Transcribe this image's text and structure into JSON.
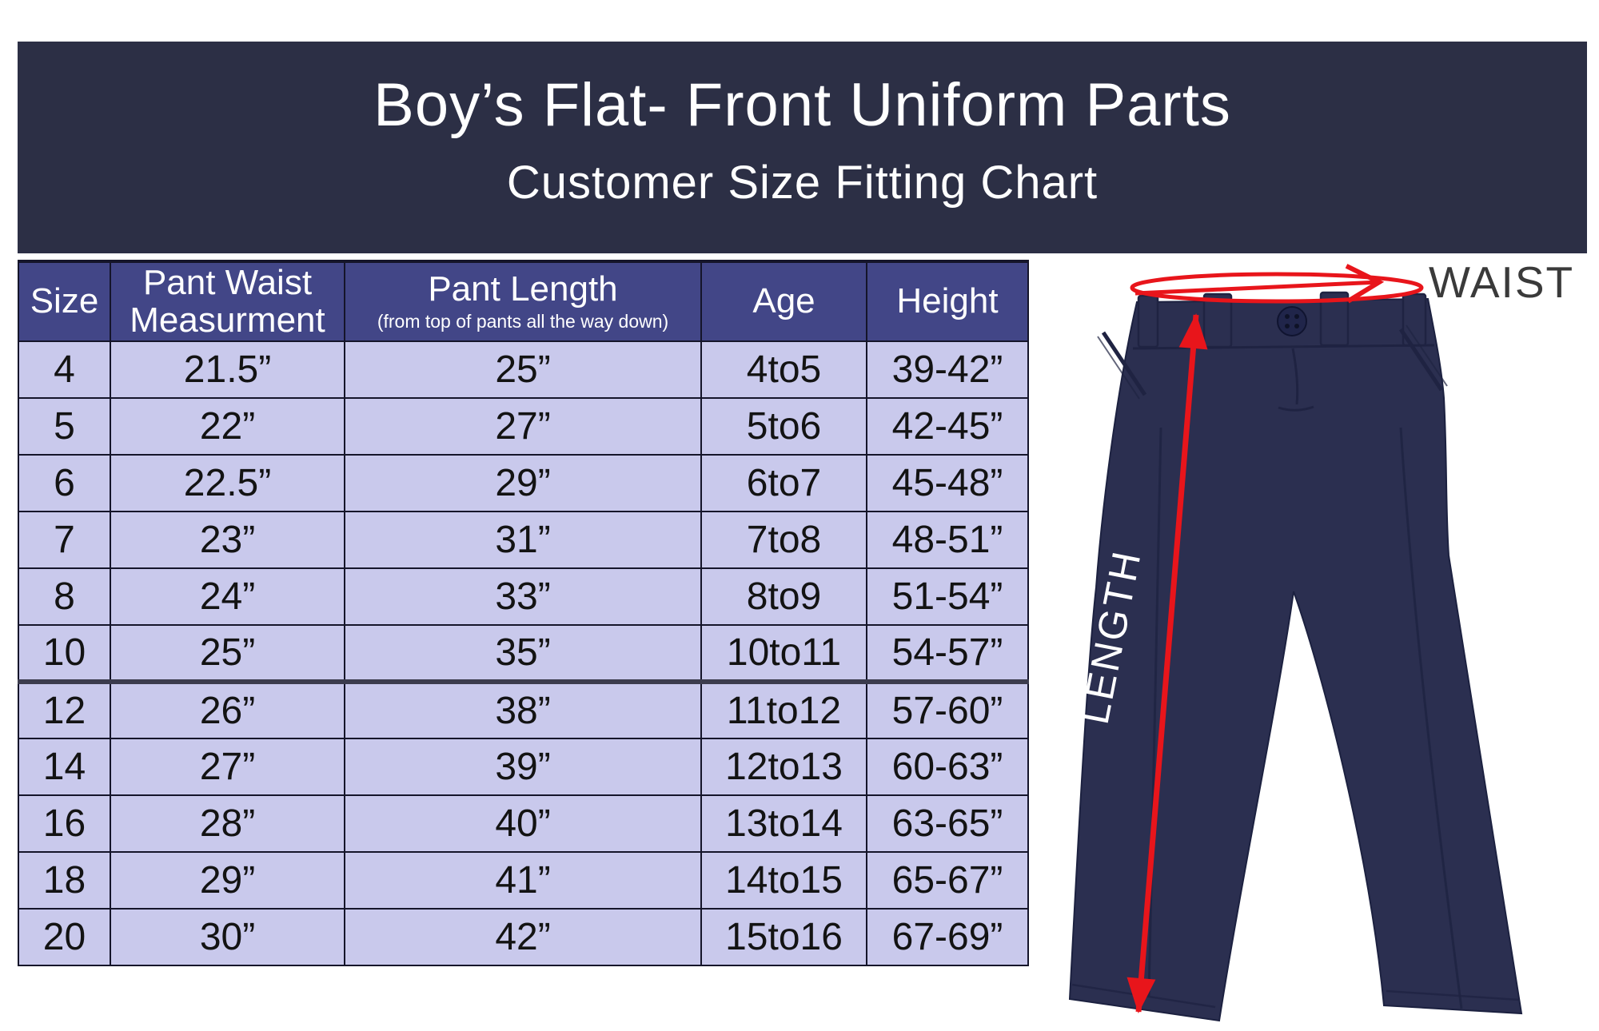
{
  "banner": {
    "title": "Boy’s Flat- Front Uniform Parts",
    "subtitle": "Customer Size Fitting Chart"
  },
  "table": {
    "columns": [
      {
        "id": "size",
        "line1": "Size"
      },
      {
        "id": "pant-waist",
        "line1": "Pant Waist",
        "line2": "Measurment"
      },
      {
        "id": "pant-length",
        "line1": "Pant Length",
        "sub": "(from top of pants all the way down)"
      },
      {
        "id": "age",
        "line1": "Age"
      },
      {
        "id": "height",
        "line1": "Height"
      }
    ],
    "rows": [
      [
        "4",
        "21.5”",
        "25”",
        "4to5",
        "39-42”"
      ],
      [
        "5",
        "22”",
        "27”",
        "5to6",
        "42-45”"
      ],
      [
        "6",
        "22.5”",
        "29”",
        "6to7",
        "45-48”"
      ],
      [
        "7",
        "23”",
        "31”",
        "7to8",
        "48-51”"
      ],
      [
        "8",
        "24”",
        "33”",
        "8to9",
        "51-54”"
      ],
      [
        "10",
        "25”",
        "35”",
        "10to11",
        "54-57”"
      ],
      [
        "12",
        "26”",
        "38”",
        "11to12",
        "57-60”"
      ],
      [
        "14",
        "27”",
        "39”",
        "12to13",
        "60-63”"
      ],
      [
        "16",
        "28”",
        "40”",
        "13to14",
        "63-65”"
      ],
      [
        "18",
        "29”",
        "41”",
        "14to15",
        "65-67”"
      ],
      [
        "20",
        "30”",
        "42”",
        "15to16",
        "67-69”"
      ]
    ],
    "thick_border_before_row": 6
  },
  "diagram": {
    "waist_label": "WAIST",
    "length_label": "LENGTH"
  },
  "colors": {
    "page_bg": "#ffffff",
    "banner_bg": "#2c2f45",
    "banner_text": "#ffffff",
    "header_bg": "#424687",
    "header_text": "#ffffff",
    "row_bg": "#c9c9ec",
    "cell_text": "#131313",
    "grid_line": "#15152a",
    "thick_line": "#3c3c4e",
    "annotation_red": "#e8151b",
    "pants_navy": "#2b2f50",
    "pants_shade": "#1f2342",
    "waist_label_color": "#3a3a3a",
    "length_label_color": "#ffffff"
  },
  "chart_data": {
    "type": "table",
    "title": "Boy’s Flat- Front Uniform Parts",
    "subtitle": "Customer Size Fitting Chart",
    "columns": [
      "Size",
      "Pant Waist Measurment",
      "Pant Length (from top of pants all the way down)",
      "Age",
      "Height"
    ],
    "rows": [
      [
        "4",
        "21.5”",
        "25”",
        "4to5",
        "39-42”"
      ],
      [
        "5",
        "22”",
        "27”",
        "5to6",
        "42-45”"
      ],
      [
        "6",
        "22.5”",
        "29”",
        "6to7",
        "45-48”"
      ],
      [
        "7",
        "23”",
        "31”",
        "7to8",
        "48-51”"
      ],
      [
        "8",
        "24”",
        "33”",
        "8to9",
        "51-54”"
      ],
      [
        "10",
        "25”",
        "35”",
        "10to11",
        "54-57”"
      ],
      [
        "12",
        "26”",
        "38”",
        "11to12",
        "57-60”"
      ],
      [
        "14",
        "27”",
        "39”",
        "12to13",
        "60-63”"
      ],
      [
        "16",
        "28”",
        "40”",
        "13to14",
        "63-65”"
      ],
      [
        "18",
        "29”",
        "41”",
        "14to15",
        "65-67”"
      ],
      [
        "20",
        "30”",
        "42”",
        "15to16",
        "67-69”"
      ]
    ],
    "annotations": [
      "WAIST",
      "LENGTH"
    ],
    "legend": "none",
    "grid": true
  }
}
